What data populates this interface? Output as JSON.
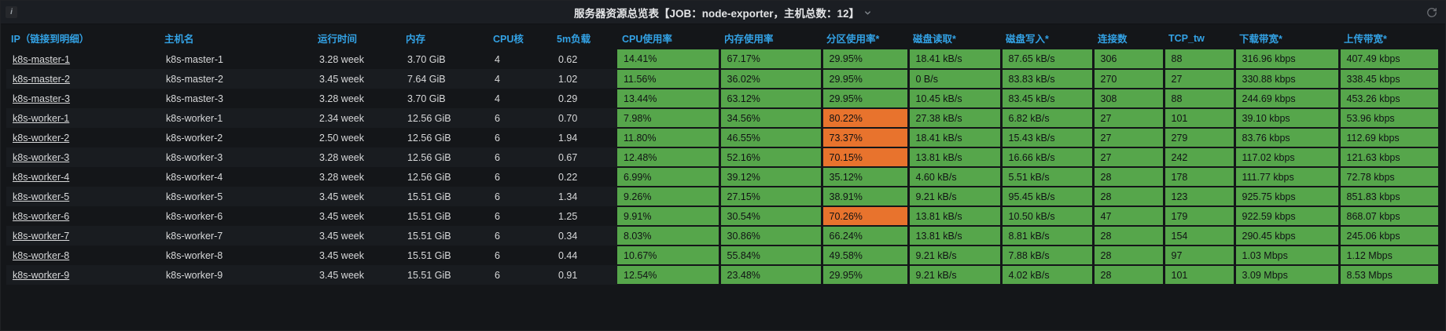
{
  "panel": {
    "title": "服务器资源总览表【JOB：node-exporter，主机总数：12】",
    "icons": {
      "info": "i"
    }
  },
  "colors": {
    "green": "#56A64B",
    "orange": "#E8732D",
    "header_blue": "#33A2E5"
  },
  "table": {
    "columns": [
      {
        "key": "ip",
        "label": "IP（链接到明细）",
        "colored": false
      },
      {
        "key": "hostname",
        "label": "主机名",
        "colored": false
      },
      {
        "key": "uptime",
        "label": "运行时间",
        "colored": false
      },
      {
        "key": "memory",
        "label": "内存",
        "colored": false
      },
      {
        "key": "cpu_cores",
        "label": "CPU核",
        "colored": false
      },
      {
        "key": "load_5m",
        "label": "5m负载",
        "colored": false
      },
      {
        "key": "cpu_usage",
        "label": "CPU使用率",
        "colored": true
      },
      {
        "key": "mem_usage",
        "label": "内存使用率",
        "colored": true
      },
      {
        "key": "partition_usage",
        "label": "分区使用率*",
        "colored": true
      },
      {
        "key": "disk_read",
        "label": "磁盘读取*",
        "colored": true
      },
      {
        "key": "disk_write",
        "label": "磁盘写入*",
        "colored": true
      },
      {
        "key": "connections",
        "label": "连接数",
        "colored": true
      },
      {
        "key": "tcp_tw",
        "label": "TCP_tw",
        "colored": true
      },
      {
        "key": "download_bw",
        "label": "下载带宽*",
        "colored": true
      },
      {
        "key": "upload_bw",
        "label": "上传带宽*",
        "colored": true
      }
    ],
    "rows": [
      {
        "cells": [
          "k8s-master-1",
          "k8s-master-1",
          "3.28 week",
          "3.70 GiB",
          "4",
          "0.62",
          "14.41%",
          "67.17%",
          "29.95%",
          "18.41 kB/s",
          "87.65 kB/s",
          "306",
          "88",
          "316.96 kbps",
          "407.49 kbps"
        ],
        "partition_color": "green"
      },
      {
        "cells": [
          "k8s-master-2",
          "k8s-master-2",
          "3.45 week",
          "7.64 GiB",
          "4",
          "1.02",
          "11.56%",
          "36.02%",
          "29.95%",
          "0 B/s",
          "83.83 kB/s",
          "270",
          "27",
          "330.88 kbps",
          "338.45 kbps"
        ],
        "partition_color": "green"
      },
      {
        "cells": [
          "k8s-master-3",
          "k8s-master-3",
          "3.28 week",
          "3.70 GiB",
          "4",
          "0.29",
          "13.44%",
          "63.12%",
          "29.95%",
          "10.45 kB/s",
          "83.45 kB/s",
          "308",
          "88",
          "244.69 kbps",
          "453.26 kbps"
        ],
        "partition_color": "green"
      },
      {
        "cells": [
          "k8s-worker-1",
          "k8s-worker-1",
          "2.34 week",
          "12.56 GiB",
          "6",
          "0.70",
          "7.98%",
          "34.56%",
          "80.22%",
          "27.38 kB/s",
          "6.82 kB/s",
          "27",
          "101",
          "39.10 kbps",
          "53.96 kbps"
        ],
        "partition_color": "orange"
      },
      {
        "cells": [
          "k8s-worker-2",
          "k8s-worker-2",
          "2.50 week",
          "12.56 GiB",
          "6",
          "1.94",
          "11.80%",
          "46.55%",
          "73.37%",
          "18.41 kB/s",
          "15.43 kB/s",
          "27",
          "279",
          "83.76 kbps",
          "112.69 kbps"
        ],
        "partition_color": "orange"
      },
      {
        "cells": [
          "k8s-worker-3",
          "k8s-worker-3",
          "3.28 week",
          "12.56 GiB",
          "6",
          "0.67",
          "12.48%",
          "52.16%",
          "70.15%",
          "13.81 kB/s",
          "16.66 kB/s",
          "27",
          "242",
          "117.02 kbps",
          "121.63 kbps"
        ],
        "partition_color": "orange"
      },
      {
        "cells": [
          "k8s-worker-4",
          "k8s-worker-4",
          "3.28 week",
          "12.56 GiB",
          "6",
          "0.22",
          "6.99%",
          "39.12%",
          "35.12%",
          "4.60 kB/s",
          "5.51 kB/s",
          "28",
          "178",
          "111.77 kbps",
          "72.78 kbps"
        ],
        "partition_color": "green"
      },
      {
        "cells": [
          "k8s-worker-5",
          "k8s-worker-5",
          "3.45 week",
          "15.51 GiB",
          "6",
          "1.34",
          "9.26%",
          "27.15%",
          "38.91%",
          "9.21 kB/s",
          "95.45 kB/s",
          "28",
          "123",
          "925.75 kbps",
          "851.83 kbps"
        ],
        "partition_color": "green"
      },
      {
        "cells": [
          "k8s-worker-6",
          "k8s-worker-6",
          "3.45 week",
          "15.51 GiB",
          "6",
          "1.25",
          "9.91%",
          "30.54%",
          "70.26%",
          "13.81 kB/s",
          "10.50 kB/s",
          "47",
          "179",
          "922.59 kbps",
          "868.07 kbps"
        ],
        "partition_color": "orange"
      },
      {
        "cells": [
          "k8s-worker-7",
          "k8s-worker-7",
          "3.45 week",
          "15.51 GiB",
          "6",
          "0.34",
          "8.03%",
          "30.86%",
          "66.24%",
          "13.81 kB/s",
          "8.81 kB/s",
          "28",
          "154",
          "290.45 kbps",
          "245.06 kbps"
        ],
        "partition_color": "green"
      },
      {
        "cells": [
          "k8s-worker-8",
          "k8s-worker-8",
          "3.45 week",
          "15.51 GiB",
          "6",
          "0.44",
          "10.67%",
          "55.84%",
          "49.58%",
          "9.21 kB/s",
          "7.88 kB/s",
          "28",
          "97",
          "1.03 Mbps",
          "1.12 Mbps"
        ],
        "partition_color": "green"
      },
      {
        "cells": [
          "k8s-worker-9",
          "k8s-worker-9",
          "3.45 week",
          "15.51 GiB",
          "6",
          "0.91",
          "12.54%",
          "23.48%",
          "29.95%",
          "9.21 kB/s",
          "4.02 kB/s",
          "28",
          "101",
          "3.09 Mbps",
          "8.53 Mbps"
        ],
        "partition_color": "green"
      }
    ]
  }
}
